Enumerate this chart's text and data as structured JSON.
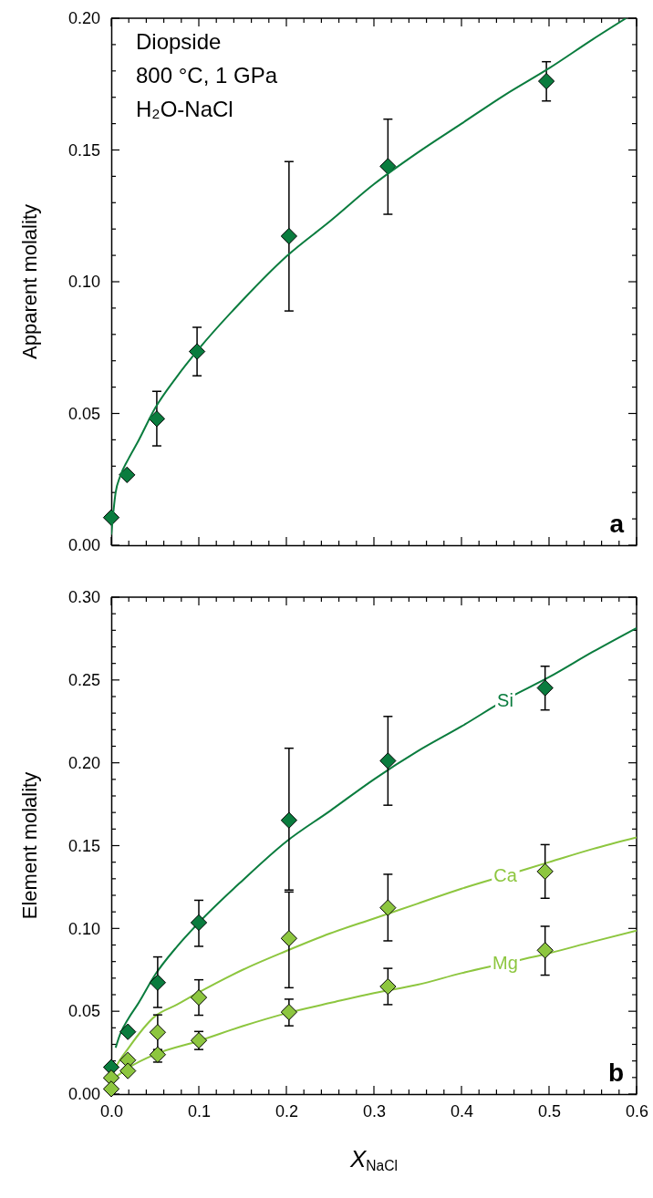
{
  "chart_data": [
    {
      "type": "scatter",
      "ylabel": "Apparent molality",
      "annotations": [
        "Diopside",
        "800 °C, 1 GPa",
        "H₂O-NaCl",
        "a"
      ],
      "xlim": [
        0,
        0.6
      ],
      "ylim": [
        0,
        0.2
      ],
      "xticks": [
        0,
        {
          "value": 0.02,
          "label": null
        },
        {
          "value": 0.04,
          "label": null
        },
        {
          "value": 0.06,
          "label": null
        },
        {
          "value": 0.08,
          "label": null
        },
        0.1,
        {
          "value": 0.12,
          "label": null
        },
        {
          "value": 0.14,
          "label": null
        },
        {
          "value": 0.16,
          "label": null
        },
        {
          "value": 0.18,
          "label": null
        },
        0.2,
        {
          "value": 0.22,
          "label": null
        },
        {
          "value": 0.24,
          "label": null
        },
        {
          "value": 0.26,
          "label": null
        },
        {
          "value": 0.28,
          "label": null
        },
        0.3,
        {
          "value": 0.32,
          "label": null
        },
        {
          "value": 0.34,
          "label": null
        },
        {
          "value": 0.36,
          "label": null
        },
        {
          "value": 0.38,
          "label": null
        },
        0.4,
        {
          "value": 0.42,
          "label": null
        },
        {
          "value": 0.44,
          "label": null
        },
        {
          "value": 0.46,
          "label": null
        },
        {
          "value": 0.48,
          "label": null
        },
        0.5,
        {
          "value": 0.52,
          "label": null
        },
        {
          "value": 0.54,
          "label": null
        },
        {
          "value": 0.56,
          "label": null
        },
        {
          "value": 0.58,
          "label": null
        },
        0.6
      ],
      "yticks": [
        {
          "value": 0,
          "label": "0.00"
        },
        {
          "value": 0.01,
          "label": null
        },
        {
          "value": 0.02,
          "label": null
        },
        {
          "value": 0.03,
          "label": null
        },
        {
          "value": 0.04,
          "label": null
        },
        {
          "value": 0.05,
          "label": "0.05"
        },
        {
          "value": 0.06,
          "label": null
        },
        {
          "value": 0.07,
          "label": null
        },
        {
          "value": 0.08,
          "label": null
        },
        {
          "value": 0.09,
          "label": null
        },
        {
          "value": 0.1,
          "label": "0.10"
        },
        {
          "value": 0.11,
          "label": null
        },
        {
          "value": 0.12,
          "label": null
        },
        {
          "value": 0.13,
          "label": null
        },
        {
          "value": 0.14,
          "label": null
        },
        {
          "value": 0.15,
          "label": "0.15"
        },
        {
          "value": 0.16,
          "label": null
        },
        {
          "value": 0.17,
          "label": null
        },
        {
          "value": 0.18,
          "label": null
        },
        {
          "value": 0.19,
          "label": null
        },
        {
          "value": 0.2,
          "label": "0.20"
        }
      ],
      "tick_labels": "y",
      "grid": false,
      "legend": false,
      "line_style": "solid",
      "series": [
        {
          "marker": "diamond",
          "color": "#0a7c3e",
          "x": [
            0,
            0.018,
            0.052,
            0.098,
            0.203,
            0.316,
            0.497
          ],
          "values": [
            0.0105,
            0.0267,
            0.048,
            0.0735,
            0.1173,
            0.1438,
            0.1761
          ],
          "errors": [
            null,
            null,
            [
              0.0377,
              0.0584
            ],
            [
              0.0643,
              0.0827
            ],
            [
              0.0889,
              0.1456
            ],
            [
              0.1256,
              0.1617
            ],
            [
              0.1686,
              0.1835
            ]
          ]
        },
        {
          "type": "line",
          "marker": "none",
          "color": "#0a7c3e",
          "x": [
            0,
            0.005,
            0.01,
            0.02,
            0.03,
            0.05,
            0.075,
            0.1,
            0.15,
            0.2,
            0.25,
            0.3,
            0.35,
            0.4,
            0.45,
            0.5,
            0.55,
            0.588
          ],
          "values": [
            0.004,
            0.02,
            0.026,
            0.033,
            0.039,
            0.052,
            0.064,
            0.0745,
            0.093,
            0.1096,
            0.123,
            0.137,
            0.149,
            0.16,
            0.171,
            0.181,
            0.192,
            0.2
          ]
        }
      ]
    },
    {
      "type": "scatter",
      "xlabel": "X$_{NaCl}$",
      "ylabel": "Element molality",
      "annotations": [
        "b"
      ],
      "xlim": [
        0,
        0.6
      ],
      "ylim": [
        0,
        0.3
      ],
      "xticks": [
        {
          "value": 0,
          "label": "0.0"
        },
        {
          "value": 0.02,
          "label": null
        },
        {
          "value": 0.04,
          "label": null
        },
        {
          "value": 0.06,
          "label": null
        },
        {
          "value": 0.08,
          "label": null
        },
        0.1,
        {
          "value": 0.12,
          "label": null
        },
        {
          "value": 0.14,
          "label": null
        },
        {
          "value": 0.16,
          "label": null
        },
        {
          "value": 0.18,
          "label": null
        },
        0.2,
        {
          "value": 0.22,
          "label": null
        },
        {
          "value": 0.24,
          "label": null
        },
        {
          "value": 0.26,
          "label": null
        },
        {
          "value": 0.28,
          "label": null
        },
        0.3,
        {
          "value": 0.32,
          "label": null
        },
        {
          "value": 0.34,
          "label": null
        },
        {
          "value": 0.36,
          "label": null
        },
        {
          "value": 0.38,
          "label": null
        },
        0.4,
        {
          "value": 0.42,
          "label": null
        },
        {
          "value": 0.44,
          "label": null
        },
        {
          "value": 0.46,
          "label": null
        },
        {
          "value": 0.48,
          "label": null
        },
        0.5,
        {
          "value": 0.52,
          "label": null
        },
        {
          "value": 0.54,
          "label": null
        },
        {
          "value": 0.56,
          "label": null
        },
        {
          "value": 0.58,
          "label": null
        },
        0.6
      ],
      "yticks": [
        {
          "value": 0,
          "label": "0.00"
        },
        {
          "value": 0.01,
          "label": null
        },
        {
          "value": 0.02,
          "label": null
        },
        {
          "value": 0.03,
          "label": null
        },
        {
          "value": 0.04,
          "label": null
        },
        {
          "value": 0.05,
          "label": "0.05"
        },
        {
          "value": 0.06,
          "label": null
        },
        {
          "value": 0.07,
          "label": null
        },
        {
          "value": 0.08,
          "label": null
        },
        {
          "value": 0.09,
          "label": null
        },
        {
          "value": 0.1,
          "label": "0.10"
        },
        {
          "value": 0.11,
          "label": null
        },
        {
          "value": 0.12,
          "label": null
        },
        {
          "value": 0.13,
          "label": null
        },
        {
          "value": 0.14,
          "label": null
        },
        {
          "value": 0.15,
          "label": "0.15"
        },
        {
          "value": 0.16,
          "label": null
        },
        {
          "value": 0.17,
          "label": null
        },
        {
          "value": 0.18,
          "label": null
        },
        {
          "value": 0.19,
          "label": null
        },
        {
          "value": 0.2,
          "label": "0.20"
        },
        {
          "value": 0.21,
          "label": null
        },
        {
          "value": 0.22,
          "label": null
        },
        {
          "value": 0.23,
          "label": null
        },
        {
          "value": 0.24,
          "label": null
        },
        {
          "value": 0.25,
          "label": "0.25"
        },
        {
          "value": 0.26,
          "label": null
        },
        {
          "value": 0.27,
          "label": null
        },
        {
          "value": 0.28,
          "label": null
        },
        {
          "value": 0.29,
          "label": null
        },
        {
          "value": 0.3,
          "label": "0.30"
        }
      ],
      "grid": false,
      "legend": false,
      "line_style": "solid",
      "series": [
        {
          "type": "line",
          "name": "Si",
          "marker": "none",
          "color": "#0a7c3e",
          "x": [
            0.005,
            0.01,
            0.02,
            0.03,
            0.05,
            0.075,
            0.1,
            0.15,
            0.2,
            0.25,
            0.3,
            0.35,
            0.4,
            0.45,
            0.5,
            0.55,
            0.6
          ],
          "values": [
            0.028,
            0.036,
            0.046,
            0.054,
            0.072,
            0.089,
            0.1035,
            0.129,
            0.1525,
            0.171,
            0.19,
            0.207,
            0.222,
            0.238,
            0.2517,
            0.267,
            0.2814
          ]
        },
        {
          "type": "line",
          "name": "Ca",
          "marker": "none",
          "color": "#8dc63f",
          "x": [
            0,
            0.005,
            0.02,
            0.05,
            0.075,
            0.1,
            0.15,
            0.2,
            0.25,
            0.3,
            0.35,
            0.4,
            0.45,
            0.5,
            0.55,
            0.6
          ],
          "values": [
            0.01,
            0.016,
            0.028,
            0.047,
            0.054,
            0.0614,
            0.075,
            0.0864,
            0.097,
            0.106,
            0.115,
            0.124,
            0.132,
            0.14,
            0.148,
            0.155
          ]
        },
        {
          "type": "line",
          "name": "Mg",
          "marker": "none",
          "color": "#8dc63f",
          "x": [
            0,
            0.02,
            0.05,
            0.1,
            0.15,
            0.2,
            0.25,
            0.3,
            0.35,
            0.4,
            0.45,
            0.5,
            0.55,
            0.6
          ],
          "values": [
            0.008,
            0.016,
            0.024,
            0.0321,
            0.041,
            0.0488,
            0.055,
            0.061,
            0.066,
            0.073,
            0.079,
            0.085,
            0.092,
            0.0987
          ]
        },
        {
          "marker": "diamond",
          "color": "#0a7c3e",
          "x": [
            0,
            0.019,
            0.053,
            0.1,
            0.203,
            0.316,
            0.4955
          ],
          "values": [
            0.0162,
            0.0376,
            0.0673,
            0.1035,
            0.1653,
            0.2012,
            0.2452
          ],
          "errors": [
            null,
            null,
            [
              0.0523,
              0.0828
            ],
            [
              0.0892,
              0.117
            ],
            [
              0.1232,
              0.2088
            ],
            [
              0.1744,
              0.228
            ],
            [
              0.2319,
              0.2583
            ]
          ]
        },
        {
          "marker": "diamond",
          "color": "#8dc63f",
          "x": [
            0,
            0.019,
            0.053,
            0.1,
            0.203,
            0.316,
            0.4955
          ],
          "values": [
            0.0098,
            0.0205,
            0.0373,
            0.0583,
            0.094,
            0.1125,
            0.1344
          ],
          "errors": [
            null,
            null,
            [
              0.0264,
              0.0478
            ],
            [
              0.0476,
              0.069
            ],
            [
              0.0642,
              0.122
            ],
            [
              0.0925,
              0.1327
            ],
            [
              0.1182,
              0.1506
            ]
          ]
        },
        {
          "marker": "diamond",
          "color": "#8dc63f",
          "x": [
            0,
            0.019,
            0.053,
            0.1,
            0.203,
            0.316,
            0.4955
          ],
          "values": [
            0.0031,
            0.014,
            0.0238,
            0.0324,
            0.0495,
            0.0649,
            0.0868
          ],
          "errors": [
            null,
            null,
            [
              0.0193,
              0.0269
            ],
            [
              0.0269,
              0.0378
            ],
            [
              0.0412,
              0.0573
            ],
            [
              0.054,
              0.0759
            ],
            [
              0.0718,
              0.1013
            ]
          ]
        }
      ]
    }
  ]
}
